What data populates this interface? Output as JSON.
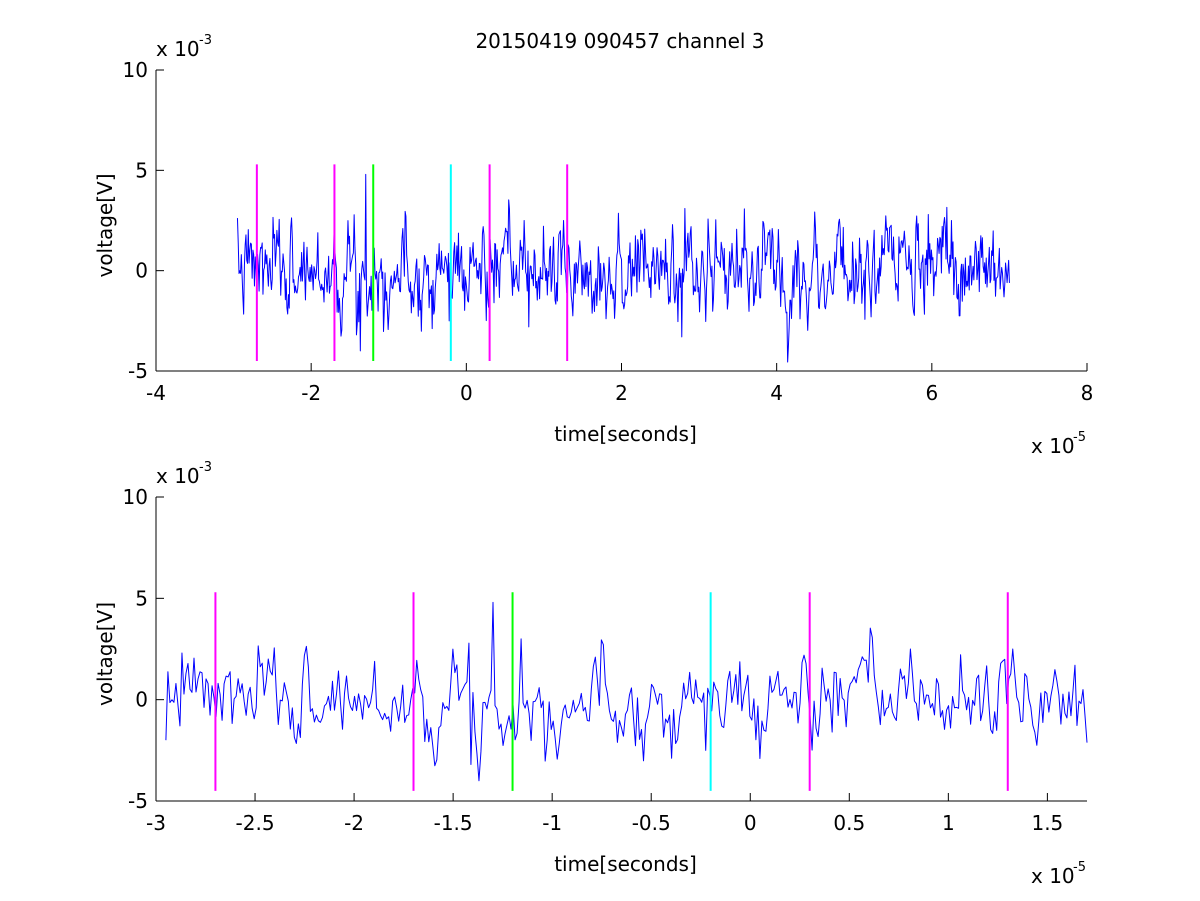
{
  "figure": {
    "title": "20150419 090457 channel 3"
  },
  "chart_data": [
    {
      "type": "line",
      "title": "20150419 090457 channel 3",
      "xlabel": "time[seconds]",
      "ylabel": "voltage[V]",
      "x_multiplier": "x 10",
      "x_exponent": "-5",
      "y_multiplier": "x 10",
      "y_exponent": "-3",
      "xlim": [
        -4,
        8
      ],
      "ylim": [
        -5,
        10
      ],
      "xticks": [
        -4,
        -2,
        0,
        2,
        4,
        6,
        8
      ],
      "xtick_labels": [
        "-4",
        "-2",
        "0",
        "2",
        "4",
        "6",
        "8"
      ],
      "yticks": [
        -5,
        0,
        5,
        10
      ],
      "ytick_labels": [
        "-5",
        "0",
        "5",
        "10"
      ],
      "grid": false,
      "signal": {
        "color": "#0000ff",
        "x_start": -2.95,
        "x_end": 7.0,
        "seed": 7,
        "n_points": 1000,
        "amplitude": 0.95,
        "spikes": [
          {
            "x": -1.3,
            "y": 4.8
          },
          {
            "x": -1.37,
            "y": -4.0
          },
          {
            "x": -1.42,
            "y": -3.2
          },
          {
            "x": -0.22,
            "y": -2.5
          },
          {
            "x": 0.8,
            "y": -2.8
          },
          {
            "x": 2.78,
            "y": -3.3
          },
          {
            "x": 2.82,
            "y": 3.1
          },
          {
            "x": 4.3,
            "y": -2.4
          },
          {
            "x": 5.95,
            "y": 2.8
          },
          {
            "x": 6.25,
            "y": 2.5
          }
        ]
      },
      "markers": [
        {
          "x": -2.7,
          "color": "#ff00ff"
        },
        {
          "x": -1.7,
          "color": "#ff00ff"
        },
        {
          "x": -1.2,
          "color": "#00ff00"
        },
        {
          "x": -0.2,
          "color": "#00ffff"
        },
        {
          "x": 0.3,
          "color": "#ff00ff"
        },
        {
          "x": 1.3,
          "color": "#ff00ff"
        }
      ],
      "marker_ylim": [
        -4.5,
        5.3
      ]
    },
    {
      "type": "line",
      "title": "",
      "xlabel": "time[seconds]",
      "ylabel": "voltage[V]",
      "x_multiplier": "x 10",
      "x_exponent": "-5",
      "y_multiplier": "x 10",
      "y_exponent": "-3",
      "xlim": [
        -3.0,
        1.7
      ],
      "ylim": [
        -5,
        10
      ],
      "xticks": [
        -3,
        -2.5,
        -2,
        -1.5,
        -1,
        -0.5,
        0,
        0.5,
        1,
        1.5
      ],
      "xtick_labels": [
        "-3",
        "-2.5",
        "-2",
        "-1.5",
        "-1",
        "-0.5",
        "0",
        "0.5",
        "1",
        "1.5"
      ],
      "yticks": [
        -5,
        0,
        5,
        10
      ],
      "ytick_labels": [
        "-5",
        "0",
        "5",
        "10"
      ],
      "grid": false,
      "signal": {
        "color": "#0000ff",
        "x_start": -2.95,
        "x_end": 1.7,
        "seed": 7,
        "n_points": 460,
        "amplitude": 0.95,
        "spikes": [
          {
            "x": -2.87,
            "y": 2.3
          },
          {
            "x": -2.95,
            "y": -2.0
          },
          {
            "x": -1.3,
            "y": 4.8
          },
          {
            "x": -1.37,
            "y": -4.0
          },
          {
            "x": -1.41,
            "y": -3.2
          },
          {
            "x": -1.16,
            "y": 3.0
          },
          {
            "x": -0.22,
            "y": -2.5
          },
          {
            "x": 0.05,
            "y": -2.9
          },
          {
            "x": 1.64,
            "y": 1.7
          }
        ]
      },
      "markers": [
        {
          "x": -2.7,
          "color": "#ff00ff"
        },
        {
          "x": -1.7,
          "color": "#ff00ff"
        },
        {
          "x": -1.2,
          "color": "#00ff00"
        },
        {
          "x": -0.2,
          "color": "#00ffff"
        },
        {
          "x": 0.3,
          "color": "#ff00ff"
        },
        {
          "x": 1.3,
          "color": "#ff00ff"
        }
      ],
      "marker_ylim": [
        -4.5,
        5.3
      ]
    }
  ]
}
